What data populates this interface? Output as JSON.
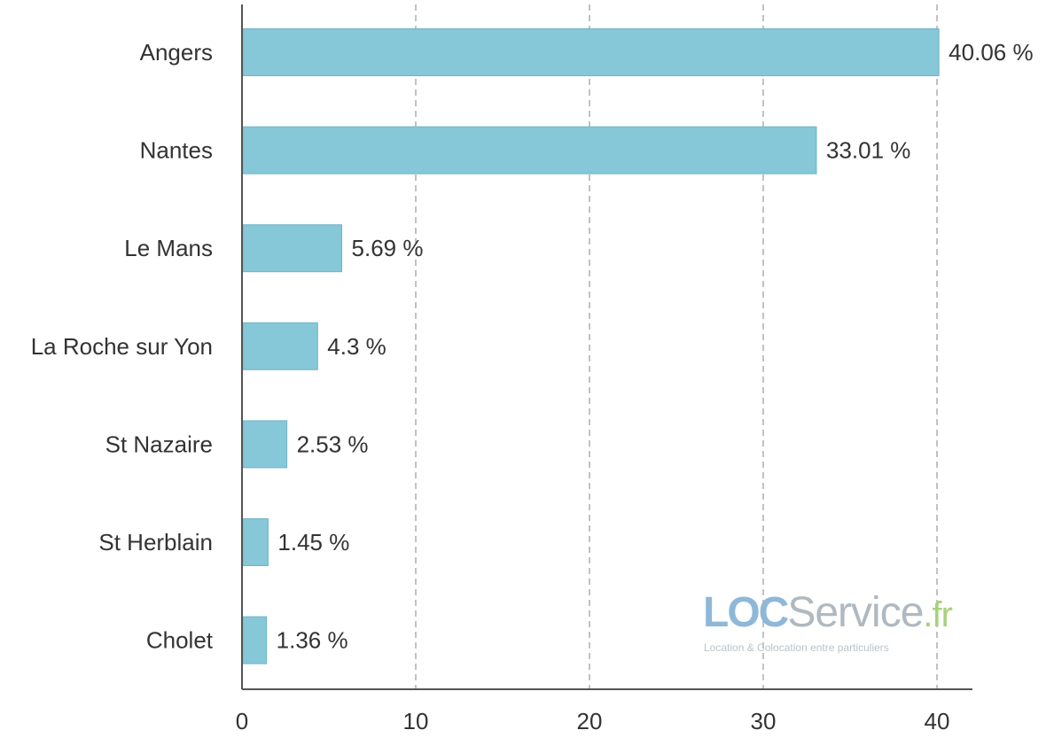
{
  "chart_data": {
    "type": "bar",
    "orientation": "horizontal",
    "categories": [
      "Angers",
      "Nantes",
      "Le Mans",
      "La Roche sur Yon",
      "St Nazaire",
      "St Herblain",
      "Cholet"
    ],
    "values": [
      40.06,
      33.01,
      5.69,
      4.3,
      2.53,
      1.45,
      1.36
    ],
    "value_labels": [
      "40.06 %",
      "33.01 %",
      "5.69 %",
      "4.3 %",
      "2.53 %",
      "1.45 %",
      "1.36 %"
    ],
    "xticks": [
      "0",
      "10",
      "20",
      "30",
      "40"
    ],
    "xlim": [
      0,
      42
    ],
    "title": "",
    "xlabel": "",
    "ylabel": "",
    "grid": "vertical dashed",
    "bar_color": "#86c7d8"
  },
  "watermark": {
    "loc": "LOC",
    "service": "Service",
    "tld": ".fr",
    "tagline": "Location & Colocation entre particuliers"
  }
}
